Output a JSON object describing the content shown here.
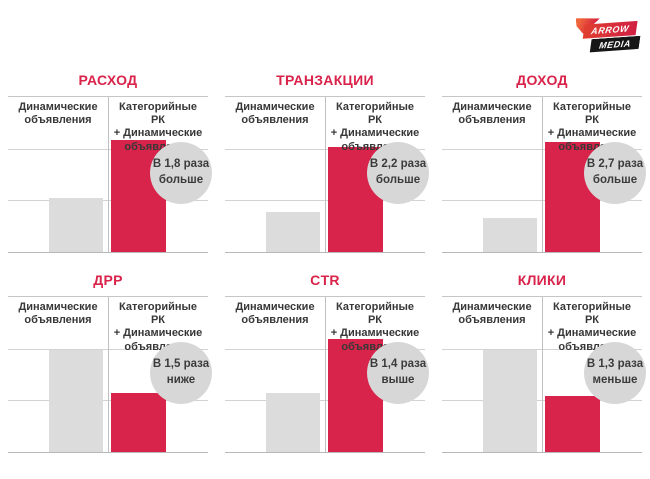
{
  "logo": {
    "brand_top": "ARROW",
    "brand_bottom": "MEDIA",
    "red": "#d01f44",
    "orange": "#f0663a",
    "black": "#161616"
  },
  "labels": {
    "left": "Динамические\nобъявления",
    "right": "Категорийные РК\n+ Динамические\nобъявления"
  },
  "colors": {
    "accent_red": "#d8234a",
    "title_red": "#d9234a",
    "bar_gray": "#dcdcdc",
    "badge_gray": "#d7d7d7",
    "text_dark": "#3b3b3b",
    "grid_line": "#c6c6c6"
  },
  "panels": [
    {
      "title": "РАСХОД",
      "badge": "В 1,8 раза\nбольше",
      "gray_height_pct": 35,
      "red_height_pct": 72
    },
    {
      "title": "ТРАНЗАКЦИИ",
      "badge": "В 2,2 раза\nбольше",
      "gray_height_pct": 26,
      "red_height_pct": 68
    },
    {
      "title": "ДОХОД",
      "badge": "В 2,7 раза\nбольше",
      "gray_height_pct": 22,
      "red_height_pct": 71
    },
    {
      "title": "ДРР",
      "badge": "В 1,5 раза\nниже",
      "gray_height_pct": 66,
      "red_height_pct": 38
    },
    {
      "title": "CTR",
      "badge": "В 1,4 раза\nвыше",
      "gray_height_pct": 38,
      "red_height_pct": 73
    },
    {
      "title": "КЛИКИ",
      "badge": "В 1,3 раза\nменьше",
      "gray_height_pct": 66,
      "red_height_pct": 36
    }
  ],
  "chart_data": [
    {
      "type": "bar",
      "title": "РАСХОД",
      "categories": [
        "Динамические объявления",
        "Категорийные РК + Динамические объявления"
      ],
      "values_ratio": [
        1.0,
        1.8
      ],
      "bar_heights_pct_of_plot": [
        35,
        72
      ],
      "annotation": "В 1,8 раза больше",
      "series_colors": [
        "#dcdcdc",
        "#d8234a"
      ],
      "ylabel": "",
      "xlabel": "",
      "grid": "2 horizontal gridlines, no numeric axis",
      "legend": "none"
    },
    {
      "type": "bar",
      "title": "ТРАНЗАКЦИИ",
      "categories": [
        "Динамические объявления",
        "Категорийные РК + Динамические объявления"
      ],
      "values_ratio": [
        1.0,
        2.2
      ],
      "bar_heights_pct_of_plot": [
        26,
        68
      ],
      "annotation": "В 2,2 раза больше",
      "series_colors": [
        "#dcdcdc",
        "#d8234a"
      ],
      "ylabel": "",
      "xlabel": "",
      "grid": "2 horizontal gridlines, no numeric axis",
      "legend": "none"
    },
    {
      "type": "bar",
      "title": "ДОХОД",
      "categories": [
        "Динамические объявления",
        "Категорийные РК + Динамические объявления"
      ],
      "values_ratio": [
        1.0,
        2.7
      ],
      "bar_heights_pct_of_plot": [
        22,
        71
      ],
      "annotation": "В 2,7 раза больше",
      "series_colors": [
        "#dcdcdc",
        "#d8234a"
      ],
      "ylabel": "",
      "xlabel": "",
      "grid": "2 horizontal gridlines, no numeric axis",
      "legend": "none"
    },
    {
      "type": "bar",
      "title": "ДРР",
      "categories": [
        "Динамические объявления",
        "Категорийные РК + Динамические объявления"
      ],
      "values_ratio": [
        1.0,
        0.67
      ],
      "bar_heights_pct_of_plot": [
        66,
        38
      ],
      "annotation": "В 1,5 раза ниже",
      "series_colors": [
        "#dcdcdc",
        "#d8234a"
      ],
      "ylabel": "",
      "xlabel": "",
      "grid": "2 horizontal gridlines, no numeric axis",
      "legend": "none"
    },
    {
      "type": "bar",
      "title": "CTR",
      "categories": [
        "Динамические объявления",
        "Категорийные РК + Динамические объявления"
      ],
      "values_ratio": [
        1.0,
        1.4
      ],
      "bar_heights_pct_of_plot": [
        38,
        73
      ],
      "annotation": "В 1,4 раза выше",
      "series_colors": [
        "#dcdcdc",
        "#d8234a"
      ],
      "ylabel": "",
      "xlabel": "",
      "grid": "2 horizontal gridlines, no numeric axis",
      "legend": "none"
    },
    {
      "type": "bar",
      "title": "КЛИКИ",
      "categories": [
        "Динамические объявления",
        "Категорийные РК + Динамические объявления"
      ],
      "values_ratio": [
        1.0,
        0.77
      ],
      "bar_heights_pct_of_plot": [
        66,
        36
      ],
      "annotation": "В 1,3 раза меньше",
      "series_colors": [
        "#dcdcdc",
        "#d8234a"
      ],
      "ylabel": "",
      "xlabel": "",
      "grid": "2 horizontal gridlines, no numeric axis",
      "legend": "none"
    }
  ]
}
